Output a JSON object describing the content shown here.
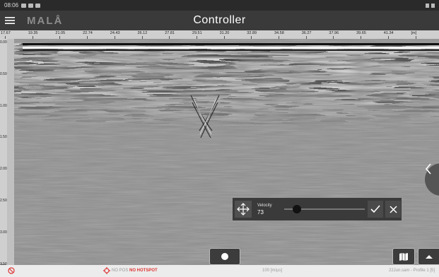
{
  "status_bar": {
    "time": "08:06"
  },
  "header": {
    "logo": "MALÅ",
    "title": "Controller"
  },
  "ruler": {
    "ticks": [
      "17.67",
      "19.35",
      "21.05",
      "22.74",
      "24.43",
      "26.12",
      "27.81",
      "29.51",
      "31.20",
      "32.89",
      "34.58",
      "36.27",
      "37.96",
      "39.65",
      "41.34",
      "[m]"
    ]
  },
  "depth_axis": {
    "labels": [
      "0.00",
      "0.50",
      "1.00",
      "1.50",
      "2.00",
      "2.50",
      "3.00",
      "3.50"
    ],
    "unit": "[m]"
  },
  "velocity": {
    "label": "Velocity",
    "value": "73",
    "slider_fraction": 0.12
  },
  "bottom_bar": {
    "no_pos": "NO POS",
    "no_hotspot": "NO HOTSPOT",
    "speed": "100 [m/µs]",
    "profile": "22Jun.sam - Profile 1 [5]"
  },
  "colors": {
    "header_bg": "#3a3a3a",
    "no_hotspot": "#dd3333",
    "radar_gray": "#8d8d8d"
  }
}
